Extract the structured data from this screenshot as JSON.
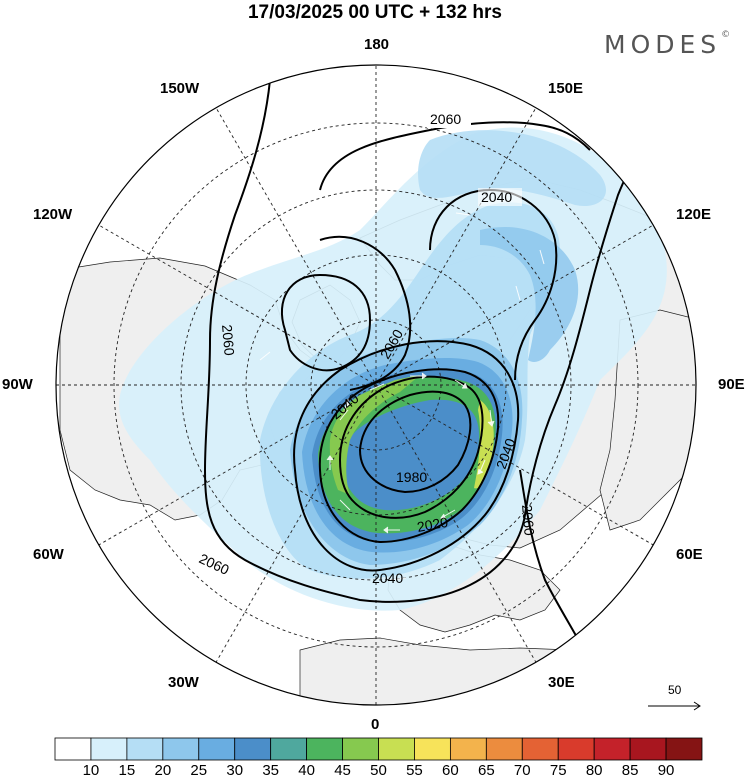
{
  "header": {
    "title": "17/03/2025  00 UTC  + 132 hrs",
    "brand": "MODES",
    "brand_mark": "©"
  },
  "map": {
    "projection": "north polar stereographic",
    "longitude_labels": {
      "top": "180",
      "top_left": "150W",
      "top_right": "150E",
      "upper_left": "120W",
      "upper_right": "120E",
      "left": "90W",
      "right": "90E",
      "lower_left": "60W",
      "lower_right": "60E",
      "bottom_left": "30W",
      "bottom_right": "30E",
      "bottom": "0"
    },
    "contour_labels": [
      "2060",
      "2040",
      "2060",
      "2060",
      "2040",
      "2040",
      "1980",
      "2020",
      "2040",
      "2060",
      "2060",
      "2040"
    ],
    "reference_vector": "50",
    "colors": {
      "land": "#efefef",
      "ocean": "#ffffff",
      "contour": "#000000"
    }
  },
  "colorbar": {
    "ticks": [
      "10",
      "15",
      "20",
      "25",
      "30",
      "35",
      "40",
      "45",
      "50",
      "55",
      "60",
      "65",
      "70",
      "75",
      "80",
      "85",
      "90"
    ],
    "colors": [
      "#ffffff",
      "#d7f0fb",
      "#b5def5",
      "#8ec7ec",
      "#69ade1",
      "#4b8ec9",
      "#4fa89e",
      "#4cb45e",
      "#86c94f",
      "#c8df52",
      "#f7e35a",
      "#f3b34c",
      "#ec8c3e",
      "#e46234",
      "#d93b2c",
      "#c4222a",
      "#a8161f",
      "#851414"
    ]
  }
}
